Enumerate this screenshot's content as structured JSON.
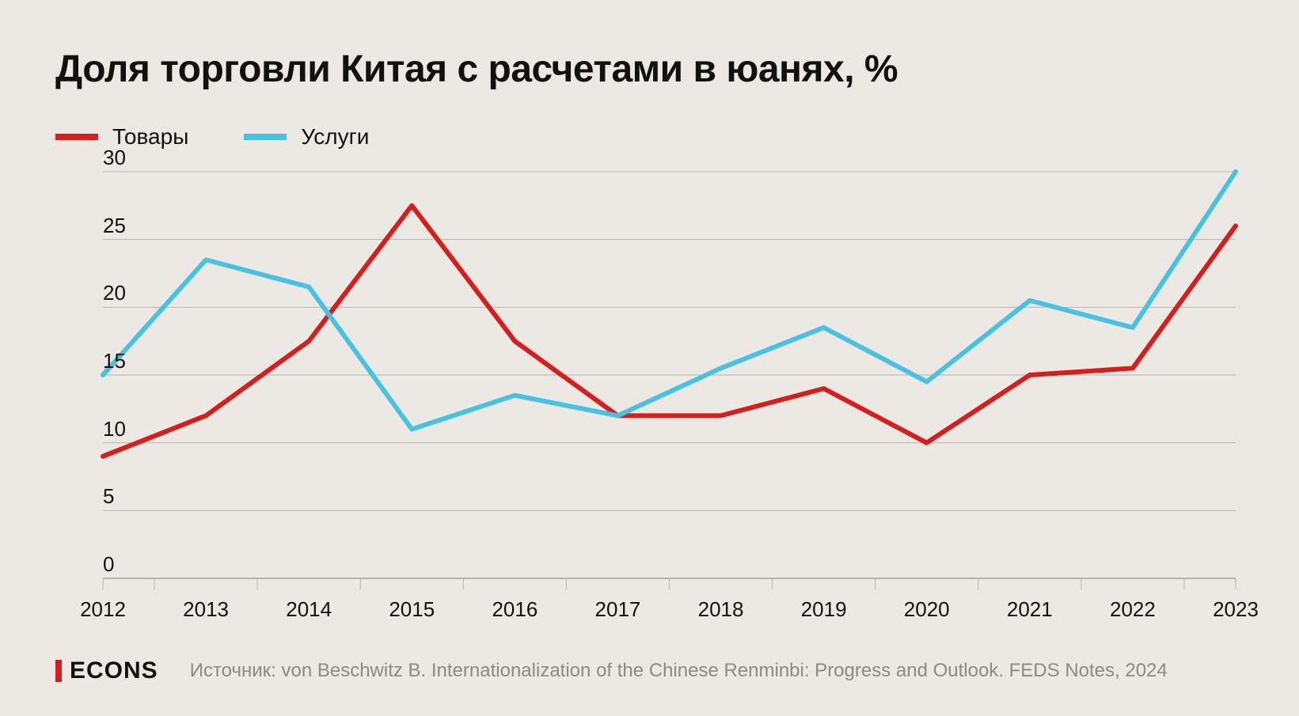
{
  "title": "Доля торговли Китая с расчетами в юанях, %",
  "legend": [
    {
      "label": "Товары",
      "color": "#d51e1e"
    },
    {
      "label": "Услуги",
      "color": "#49c2e2"
    }
  ],
  "chart": {
    "type": "line",
    "background_color": "#ece9e4",
    "grid_color": "#b7b4ae",
    "axis_color": "#b7b4ae",
    "tick_color": "#b7b4ae",
    "line_width": 6,
    "x_categories": [
      "2012",
      "2013",
      "2014",
      "2015",
      "2016",
      "2017",
      "2018",
      "2019",
      "2020",
      "2021",
      "2022",
      "2023"
    ],
    "ylim": [
      0,
      30
    ],
    "ytick_step": 5,
    "series": [
      {
        "name": "Товары",
        "color": "#d51e1e",
        "values": [
          9.0,
          12.0,
          17.5,
          27.5,
          17.5,
          12.0,
          12.0,
          14.0,
          10.0,
          15.0,
          15.5,
          26.0
        ]
      },
      {
        "name": "Услуги",
        "color": "#49c2e2",
        "values": [
          15.0,
          23.5,
          21.5,
          11.0,
          13.5,
          12.0,
          15.5,
          18.5,
          14.5,
          20.5,
          18.5,
          30.0
        ]
      }
    ],
    "label_fontsize": 26,
    "title_fontsize": 48
  },
  "brand": "ECONS",
  "brand_accent": "#d51e1e",
  "source": "Источник: von Beschwitz B. Internationalization of the Chinese Renminbi: Progress and Outlook. FEDS Notes, 2024"
}
